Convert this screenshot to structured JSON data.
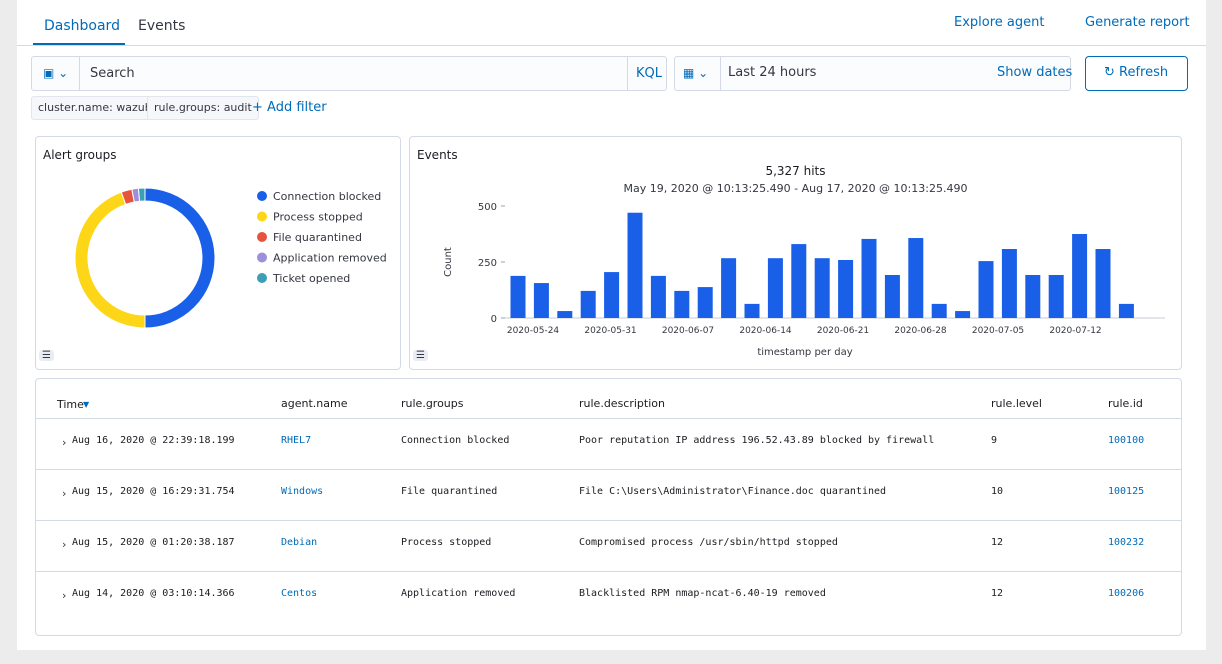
{
  "tabs": [
    "Dashboard",
    "Events"
  ],
  "actions": [
    "Explore agent",
    "Generate report"
  ],
  "search": {
    "placeholder": "Search",
    "language": "KQL",
    "time_range": "Last 24 hours",
    "show_dates": "Show dates",
    "refresh": "Refresh"
  },
  "filters": {
    "items": [
      "cluster.name: wazuh",
      "rule.groups: audit"
    ],
    "add": "+ Add filter"
  },
  "alert_groups": {
    "title": "Alert groups",
    "chart_data": {
      "type": "pie",
      "categories": [
        "Connection blocked",
        "Process stopped",
        "File quarantined",
        "Application removed",
        "Ticket opened"
      ],
      "values": [
        50,
        44.5,
        2.5,
        1.5,
        1.5
      ],
      "colors": [
        "#1a5fe8",
        "#fcd617",
        "#e7543c",
        "#9d8fdb",
        "#3d9fb5"
      ]
    }
  },
  "events": {
    "title": "Events",
    "hits": "5,327 hits",
    "range": "May 19, 2020 @ 10:13:25.490 - Aug 17, 2020 @ 10:13:25.490",
    "chart_data": {
      "type": "bar",
      "y_label": "Count",
      "x_label": "timestamp per day",
      "x_labels": [
        "2020-05-24",
        "2020-05-31",
        "2020-06-07",
        "2020-06-14",
        "2020-06-21",
        "2020-06-28",
        "2020-07-05",
        "2020-07-12"
      ],
      "values": [
        188,
        156,
        31,
        121,
        205,
        470,
        188,
        121,
        138,
        267,
        63,
        267,
        330,
        267,
        259,
        353,
        192,
        357,
        63,
        31,
        254,
        308,
        192,
        192,
        375,
        308,
        63
      ],
      "color": "#1a5fe8",
      "ylim": [
        0,
        500
      ],
      "yticks": [
        0,
        250,
        500
      ]
    }
  },
  "table": {
    "headers": [
      "Time",
      "agent.name",
      "rule.groups",
      "rule.description",
      "rule.level",
      "rule.id"
    ],
    "rows": [
      [
        "Aug 16, 2020 @ 22:39:18.199",
        "RHEL7",
        "Connection blocked",
        "Poor reputation IP address 196.52.43.89 blocked by firewall",
        "9",
        "100100"
      ],
      [
        "Aug 15, 2020 @ 16:29:31.754",
        "Windows",
        "File quarantined",
        "File C:\\Users\\Administrator\\Finance.doc quarantined",
        "10",
        "100125"
      ],
      [
        "Aug 15, 2020 @ 01:20:38.187",
        "Debian",
        "Process stopped",
        "Compromised process /usr/sbin/httpd stopped",
        "12",
        "100232"
      ],
      [
        "Aug 14, 2020 @ 03:10:14.366",
        "Centos",
        "Application removed",
        "Blacklisted RPM nmap-ncat-6.40-19 removed",
        "12",
        "100206"
      ]
    ]
  }
}
